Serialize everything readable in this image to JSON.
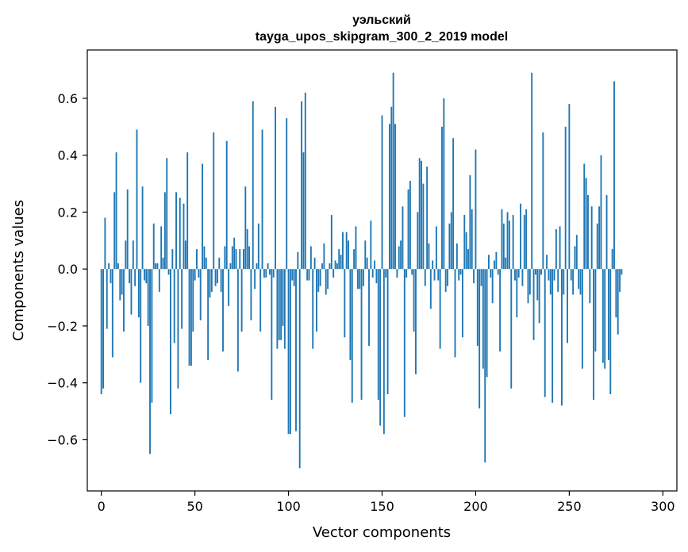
{
  "chart_data": {
    "type": "bar",
    "title": "уэльский",
    "subtitle": "tayga_upos_skipgram_300_2_2019 model",
    "xlabel": "Vector components",
    "ylabel": "Components values",
    "xlim": [
      -7.5,
      307.5
    ],
    "ylim": [
      -0.78,
      0.77
    ],
    "xticks": [
      0,
      50,
      100,
      150,
      200,
      250,
      300
    ],
    "yticks": [
      -0.6,
      -0.4,
      -0.2,
      0.0,
      0.2,
      0.4,
      0.6
    ],
    "ytick_labels": [
      "−0.6",
      "−0.4",
      "−0.2",
      "0.0",
      "0.2",
      "0.4",
      "0.6"
    ],
    "bar_color": "#1f77b4",
    "grid": false,
    "values": [
      -0.44,
      -0.42,
      0.18,
      -0.21,
      0.02,
      -0.05,
      -0.31,
      0.27,
      0.41,
      0.02,
      -0.11,
      -0.09,
      -0.22,
      0.1,
      0.28,
      -0.05,
      -0.16,
      0.1,
      -0.06,
      0.49,
      -0.17,
      -0.4,
      0.29,
      -0.04,
      -0.05,
      -0.2,
      -0.65,
      -0.47,
      0.16,
      0.02,
      0.02,
      -0.08,
      0.15,
      0.04,
      0.27,
      0.39,
      -0.02,
      -0.51,
      0.07,
      -0.26,
      0.27,
      -0.42,
      0.25,
      -0.21,
      0.23,
      0.1,
      0.41,
      -0.34,
      -0.34,
      -0.22,
      -0.04,
      0.07,
      -0.03,
      -0.18,
      0.37,
      0.08,
      0.04,
      -0.32,
      -0.1,
      -0.08,
      0.48,
      -0.06,
      -0.05,
      0.04,
      -0.08,
      -0.29,
      0.08,
      0.45,
      -0.13,
      0.02,
      0.08,
      0.11,
      0.07,
      -0.36,
      0.07,
      -0.22,
      0.07,
      0.29,
      0.14,
      0.08,
      -0.18,
      0.59,
      -0.07,
      0.02,
      0.16,
      -0.22,
      0.49,
      -0.03,
      -0.03,
      0.02,
      -0.02,
      -0.46,
      -0.03,
      0.57,
      -0.28,
      -0.25,
      -0.25,
      -0.2,
      -0.28,
      0.53,
      -0.58,
      -0.58,
      -0.04,
      -0.06,
      -0.57,
      0.06,
      -0.7,
      0.59,
      0.41,
      0.62,
      -0.04,
      -0.04,
      0.08,
      -0.28,
      0.04,
      -0.22,
      -0.08,
      -0.06,
      0.02,
      0.09,
      -0.09,
      -0.07,
      0.02,
      0.19,
      -0.03,
      0.03,
      0.02,
      0.07,
      0.05,
      0.13,
      -0.24,
      0.13,
      0.1,
      -0.32,
      -0.47,
      0.07,
      0.15,
      -0.07,
      -0.07,
      -0.46,
      -0.06,
      0.1,
      0.04,
      -0.27,
      0.17,
      -0.03,
      0.03,
      -0.05,
      -0.46,
      -0.55,
      0.54,
      -0.58,
      -0.03,
      -0.44,
      0.51,
      0.57,
      0.69,
      0.51,
      -0.03,
      0.08,
      0.1,
      0.22,
      -0.52,
      -0.03,
      0.28,
      0.31,
      -0.02,
      -0.22,
      -0.37,
      0.2,
      0.39,
      0.38,
      0.3,
      -0.06,
      0.36,
      0.09,
      -0.14,
      0.03,
      -0.04,
      0.15,
      -0.04,
      -0.28,
      0.5,
      0.6,
      -0.08,
      -0.06,
      0.16,
      0.2,
      0.46,
      -0.31,
      0.09,
      -0.04,
      -0.02,
      -0.24,
      0.19,
      0.13,
      0.07,
      0.33,
      0.21,
      -0.05,
      0.42,
      -0.27,
      -0.49,
      -0.06,
      -0.35,
      -0.68,
      -0.38,
      0.05,
      -0.03,
      -0.12,
      0.03,
      0.06,
      -0.02,
      -0.29,
      0.21,
      0.16,
      0.04,
      0.2,
      0.17,
      -0.42,
      0.19,
      -0.04,
      -0.17,
      -0.03,
      0.23,
      -0.06,
      0.19,
      0.21,
      -0.12,
      -0.09,
      0.69,
      -0.25,
      -0.02,
      -0.11,
      -0.19,
      -0.02,
      0.48,
      -0.45,
      0.05,
      -0.04,
      -0.09,
      -0.47,
      -0.04,
      0.14,
      -0.08,
      0.15,
      -0.48,
      -0.09,
      0.5,
      -0.26,
      0.58,
      -0.04,
      -0.09,
      0.08,
      0.12,
      -0.07,
      -0.09,
      -0.35,
      0.37,
      0.32,
      0.26,
      -0.12,
      0.22,
      -0.46,
      -0.29,
      0.16,
      0.22,
      0.4,
      -0.33,
      -0.35,
      0.26,
      -0.32,
      -0.44,
      0.07,
      0.66,
      -0.17,
      -0.23,
      -0.08,
      -0.02
    ]
  }
}
